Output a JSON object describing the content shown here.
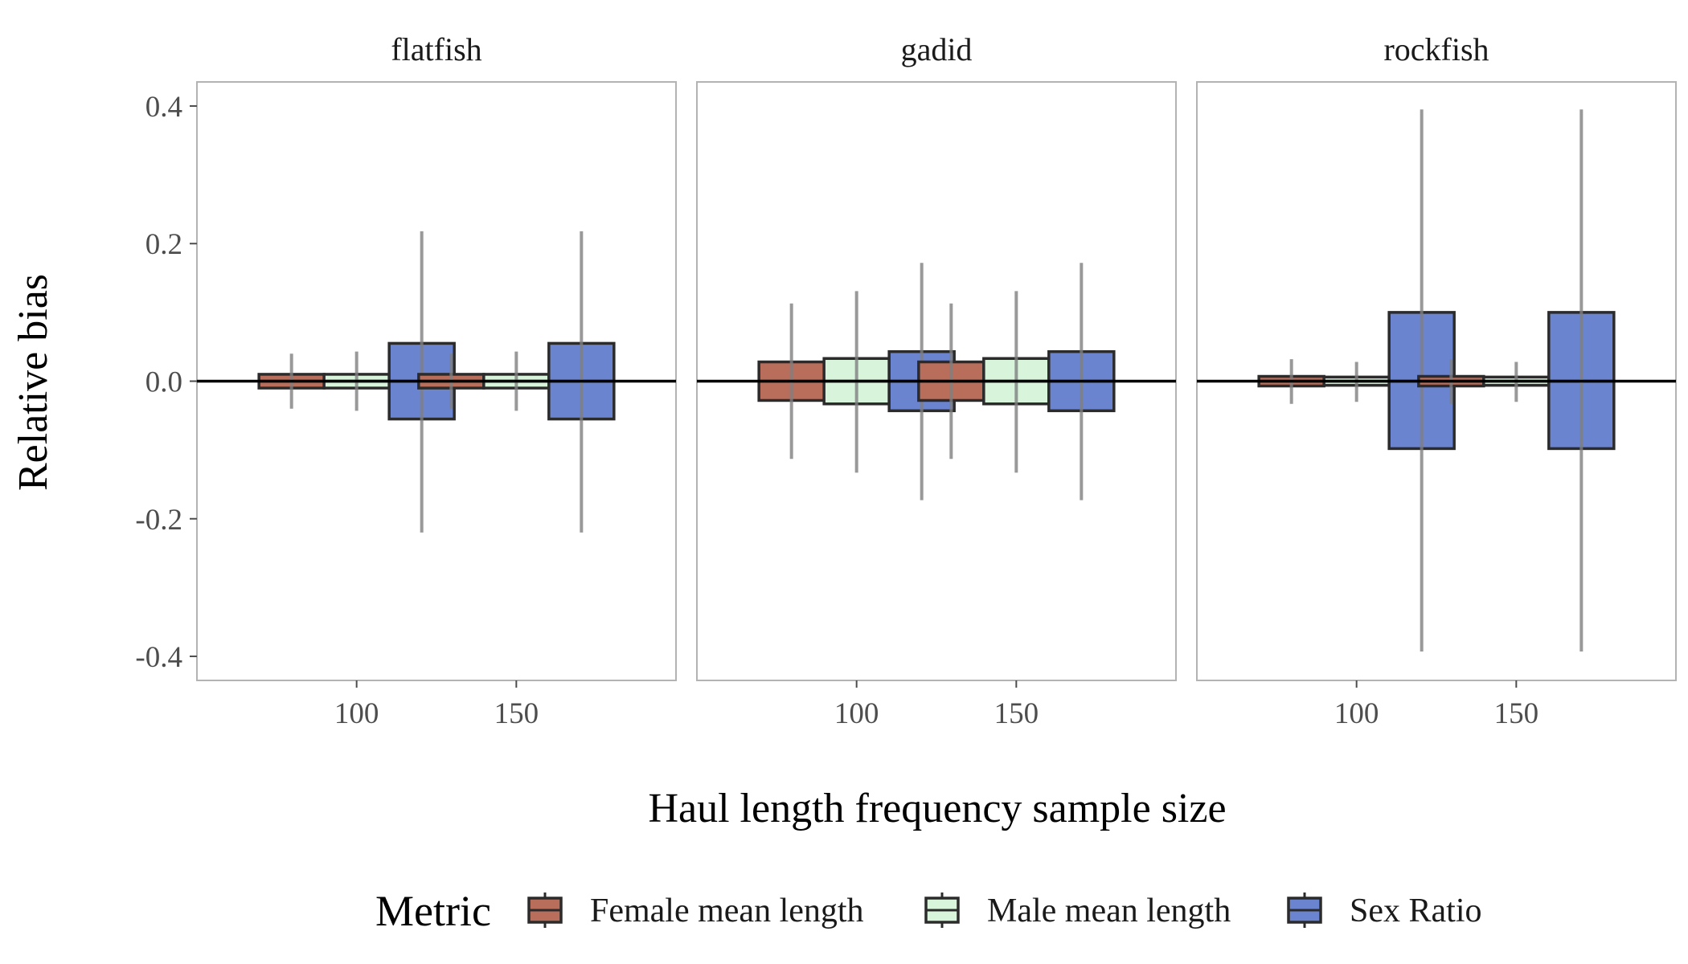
{
  "chart_data": {
    "type": "boxplot",
    "x": [
      100,
      150
    ],
    "xlabel": "Haul length frequency sample size",
    "ylabel": "Relative bias",
    "ylim": [
      -0.435,
      0.435
    ],
    "y_ticks": [
      -0.4,
      -0.2,
      0.0,
      0.2,
      0.4
    ],
    "y_tick_labels": [
      "-0.4",
      "-0.2",
      "0.0",
      "0.2",
      "0.4"
    ],
    "x_tick_labels": [
      "100",
      "150"
    ],
    "grid": false,
    "reference_line_y": 0,
    "legend": {
      "title": "Metric",
      "position": "bottom",
      "entries": [
        {
          "name": "Female mean length",
          "color": "#B96E5C"
        },
        {
          "name": "Male mean length",
          "color": "#D8F5DC"
        },
        {
          "name": "Sex Ratio",
          "color": "#6B84CF"
        }
      ]
    },
    "panels": [
      {
        "name": "flatfish",
        "groups": [
          {
            "x": 100,
            "boxes": [
              {
                "metric": "Female mean length",
                "q1": -0.01,
                "median": 0.0,
                "q3": 0.01,
                "whisker_low": -0.04,
                "whisker_high": 0.04
              },
              {
                "metric": "Male mean length",
                "q1": -0.01,
                "median": 0.0,
                "q3": 0.01,
                "whisker_low": -0.043,
                "whisker_high": 0.043
              },
              {
                "metric": "Sex Ratio",
                "q1": -0.055,
                "median": 0.0,
                "q3": 0.055,
                "whisker_low": -0.22,
                "whisker_high": 0.218
              }
            ]
          },
          {
            "x": 150,
            "boxes": [
              {
                "metric": "Female mean length",
                "q1": -0.01,
                "median": 0.0,
                "q3": 0.01,
                "whisker_low": -0.04,
                "whisker_high": 0.04
              },
              {
                "metric": "Male mean length",
                "q1": -0.01,
                "median": 0.0,
                "q3": 0.01,
                "whisker_low": -0.043,
                "whisker_high": 0.043
              },
              {
                "metric": "Sex Ratio",
                "q1": -0.055,
                "median": 0.0,
                "q3": 0.055,
                "whisker_low": -0.22,
                "whisker_high": 0.218
              }
            ]
          }
        ]
      },
      {
        "name": "gadid",
        "groups": [
          {
            "x": 100,
            "boxes": [
              {
                "metric": "Female mean length",
                "q1": -0.028,
                "median": 0.0,
                "q3": 0.028,
                "whisker_low": -0.113,
                "whisker_high": 0.113
              },
              {
                "metric": "Male mean length",
                "q1": -0.033,
                "median": 0.0,
                "q3": 0.033,
                "whisker_low": -0.133,
                "whisker_high": 0.131
              },
              {
                "metric": "Sex Ratio",
                "q1": -0.043,
                "median": 0.0,
                "q3": 0.043,
                "whisker_low": -0.173,
                "whisker_high": 0.172
              }
            ]
          },
          {
            "x": 150,
            "boxes": [
              {
                "metric": "Female mean length",
                "q1": -0.028,
                "median": 0.0,
                "q3": 0.028,
                "whisker_low": -0.113,
                "whisker_high": 0.113
              },
              {
                "metric": "Male mean length",
                "q1": -0.033,
                "median": 0.0,
                "q3": 0.033,
                "whisker_low": -0.133,
                "whisker_high": 0.131
              },
              {
                "metric": "Sex Ratio",
                "q1": -0.043,
                "median": 0.0,
                "q3": 0.043,
                "whisker_low": -0.173,
                "whisker_high": 0.172
              }
            ]
          }
        ]
      },
      {
        "name": "rockfish",
        "groups": [
          {
            "x": 100,
            "boxes": [
              {
                "metric": "Female mean length",
                "q1": -0.007,
                "median": 0.0,
                "q3": 0.007,
                "whisker_low": -0.033,
                "whisker_high": 0.032
              },
              {
                "metric": "Male mean length",
                "q1": -0.006,
                "median": 0.0,
                "q3": 0.006,
                "whisker_low": -0.03,
                "whisker_high": 0.028
              },
              {
                "metric": "Sex Ratio",
                "q1": -0.098,
                "median": 0.0,
                "q3": 0.1,
                "whisker_low": -0.393,
                "whisker_high": 0.395
              }
            ]
          },
          {
            "x": 150,
            "boxes": [
              {
                "metric": "Female mean length",
                "q1": -0.007,
                "median": 0.0,
                "q3": 0.007,
                "whisker_low": -0.033,
                "whisker_high": 0.032
              },
              {
                "metric": "Male mean length",
                "q1": -0.006,
                "median": 0.0,
                "q3": 0.006,
                "whisker_low": -0.03,
                "whisker_high": 0.028
              },
              {
                "metric": "Sex Ratio",
                "q1": -0.098,
                "median": 0.0,
                "q3": 0.1,
                "whisker_low": -0.393,
                "whisker_high": 0.395
              }
            ]
          }
        ]
      }
    ]
  }
}
